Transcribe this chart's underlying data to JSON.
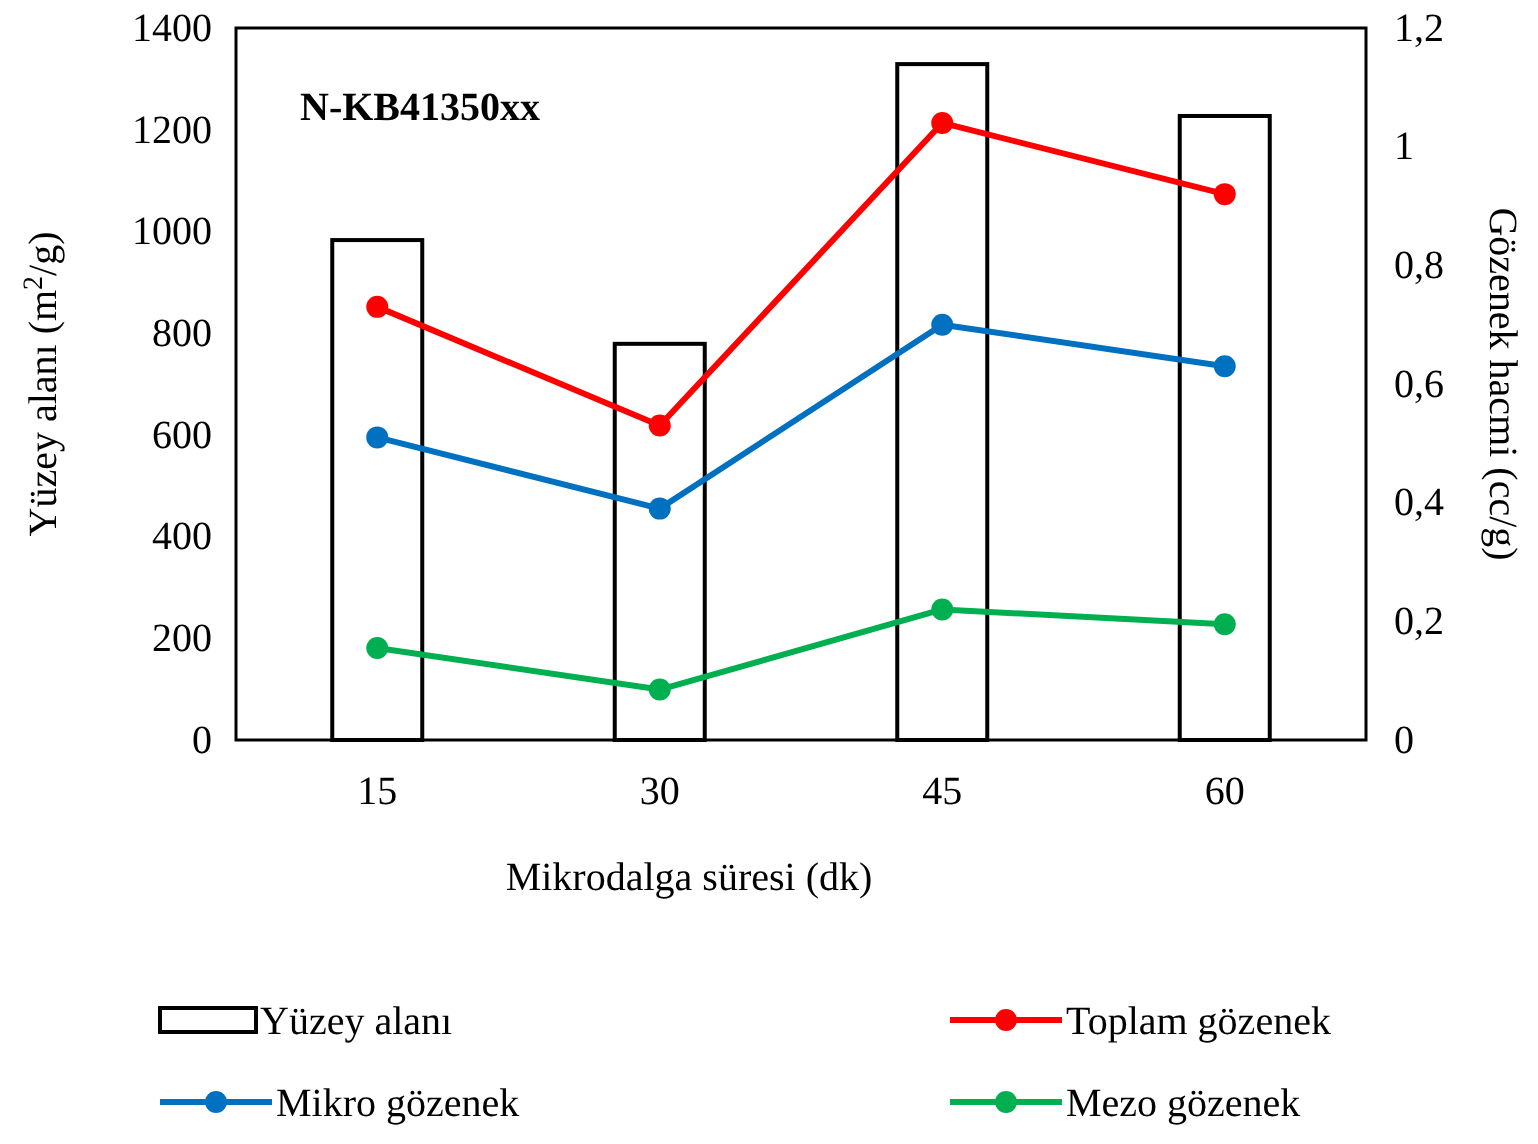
{
  "chart_data": {
    "type": "bar",
    "xlabel": "Mikrodalga süresi (dk)",
    "ylabel": "Yüzey alanı (m$^{2}$/g)",
    "y2label": "Gözenek hacmi (cc/g)",
    "annotations": [
      "N-KB41350xx"
    ],
    "categories": [
      "15",
      "30",
      "45",
      "60"
    ],
    "series": [
      {
        "name": "Yüzey alanı",
        "color": "#ffffff",
        "values": [
          983,
          779,
          1329,
          1227
        ]
      },
      {
        "name": "Toplam gözenek",
        "type": "line",
        "axis": "y2",
        "color": "#ff0000",
        "values": [
          0.73,
          0.53,
          1.04,
          0.92
        ]
      },
      {
        "name": "Mikro gözenek",
        "type": "line",
        "axis": "y2",
        "color": "#0070c0",
        "values": [
          0.51,
          0.39,
          0.7,
          0.63
        ]
      },
      {
        "name": "Mezo gözenek",
        "type": "line",
        "axis": "y2",
        "color": "#00b050",
        "values": [
          0.155,
          0.085,
          0.22,
          0.195
        ]
      }
    ],
    "ylim": [
      0,
      1400
    ],
    "yticks": [
      0,
      200,
      400,
      600,
      800,
      1000,
      1200,
      1400
    ],
    "y2lim": [
      0,
      1.2
    ],
    "y2ticks": [
      0,
      {
        "value": 0.2,
        "label": "0,2"
      },
      {
        "value": 0.4,
        "label": "0,4"
      },
      {
        "value": 0.6,
        "label": "0,6"
      },
      {
        "value": 0.8,
        "label": "0,8"
      },
      1,
      {
        "value": 1.2,
        "label": "1,2"
      }
    ],
    "legend": "bottom",
    "marker": "circle",
    "line_style": "solid"
  }
}
